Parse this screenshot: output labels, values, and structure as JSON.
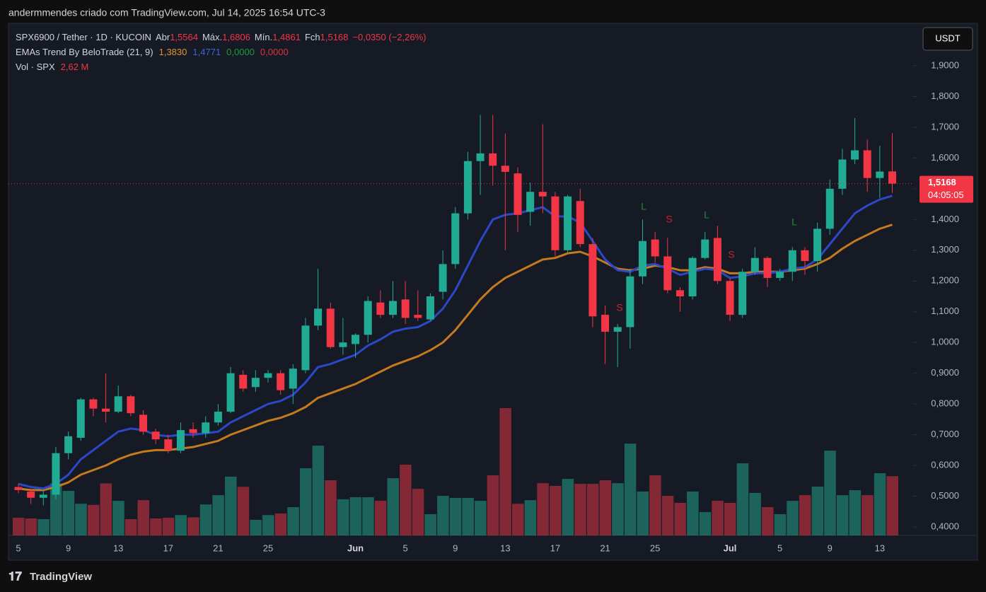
{
  "chart_data": {
    "type": "candlestick",
    "header": "andermmendes criado com TradingView.com, Jul 14, 2025 16:54 UTC-3",
    "legend": {
      "symbol": "SPX6900 / Tether · 1D · KUCOIN",
      "ohlc": [
        {
          "label": "Abr",
          "value": "1,5564"
        },
        {
          "label": "Máx.",
          "value": "1,6806"
        },
        {
          "label": "Mín.",
          "value": "1,4861"
        },
        {
          "label": "Fch",
          "value": "1,5168"
        }
      ],
      "change": "−0,0350 (−2,26%)",
      "indicator": "EMAs Trend By BeloTrade (21, 9)",
      "indicator_values": [
        {
          "value": "1,3830",
          "color": "#e0962e"
        },
        {
          "value": "1,4771",
          "color": "#3f63e0"
        },
        {
          "value": "0,0000",
          "color": "#1c9c3a"
        },
        {
          "value": "0,0000",
          "color": "#e0313a"
        }
      ],
      "volume": "Vol · SPX",
      "volume_value": "2,62 M"
    },
    "currency": "USDT",
    "price_label": "1,5168",
    "countdown": "04:05:05",
    "brand": "TradingView",
    "up_color": "#22ab94",
    "down_color": "#f23645",
    "categories": [
      "5",
      null,
      null,
      null,
      "9",
      null,
      null,
      null,
      "13",
      null,
      null,
      null,
      "17",
      null,
      null,
      null,
      "21",
      null,
      null,
      null,
      "25",
      null,
      null,
      null,
      null,
      null,
      null,
      "Jun",
      null,
      null,
      null,
      "5",
      null,
      null,
      null,
      "9",
      null,
      null,
      null,
      "13",
      null,
      null,
      null,
      "17",
      null,
      null,
      null,
      "21",
      null,
      null,
      null,
      "25",
      null,
      null,
      null,
      null,
      null,
      "Jul",
      null,
      null,
      null,
      "5",
      null,
      null,
      null,
      "9",
      null,
      null,
      null,
      "13",
      null
    ],
    "open": [
      0.53,
      0.515,
      0.495,
      0.505,
      0.64,
      0.69,
      0.815,
      0.785,
      0.775,
      0.825,
      0.765,
      0.71,
      0.685,
      0.648,
      0.718,
      0.705,
      0.74,
      0.775,
      0.895,
      0.855,
      0.885,
      0.9,
      0.85,
      0.91,
      1.055,
      1.11,
      0.985,
      0.995,
      1.025,
      1.13,
      1.09,
      1.14,
      1.09,
      1.075,
      1.165,
      1.255,
      1.42,
      1.59,
      1.615,
      1.575,
      1.55,
      1.425,
      1.49,
      1.475,
      1.3,
      1.46,
      1.32,
      1.09,
      1.035,
      1.05,
      1.215,
      1.335,
      1.28,
      1.17,
      1.15,
      1.275,
      1.34,
      1.2,
      1.09,
      1.23,
      1.275,
      1.21,
      1.23,
      1.3,
      1.265,
      1.37,
      1.5,
      1.595,
      1.625,
      1.535,
      1.5564
    ],
    "high": [
      0.54,
      0.525,
      0.52,
      0.66,
      0.71,
      0.82,
      0.82,
      0.9,
      0.86,
      0.83,
      0.78,
      0.72,
      0.7,
      0.74,
      0.74,
      0.76,
      0.8,
      0.92,
      0.91,
      0.91,
      0.91,
      0.91,
      0.93,
      1.08,
      1.24,
      1.13,
      1.08,
      1.03,
      1.15,
      1.17,
      1.2,
      1.2,
      1.17,
      1.16,
      1.3,
      1.44,
      1.62,
      1.74,
      1.74,
      1.68,
      1.57,
      1.52,
      1.71,
      1.49,
      1.48,
      1.5,
      1.34,
      1.12,
      1.06,
      1.24,
      1.4,
      1.36,
      1.34,
      1.18,
      1.28,
      1.36,
      1.38,
      1.21,
      1.24,
      1.31,
      1.28,
      1.24,
      1.31,
      1.31,
      1.39,
      1.53,
      1.63,
      1.73,
      1.66,
      1.64,
      1.6806
    ],
    "low": [
      0.51,
      0.475,
      0.47,
      0.49,
      0.62,
      0.68,
      0.76,
      0.74,
      0.77,
      0.76,
      0.7,
      0.67,
      0.64,
      0.64,
      0.69,
      0.69,
      0.73,
      0.77,
      0.84,
      0.84,
      0.87,
      0.83,
      0.8,
      0.9,
      1.04,
      0.98,
      0.96,
      0.95,
      1.0,
      1.08,
      1.08,
      1.06,
      1.07,
      1.07,
      1.14,
      1.24,
      1.4,
      1.48,
      1.51,
      1.3,
      1.36,
      1.38,
      1.42,
      1.28,
      1.29,
      1.31,
      1.05,
      0.93,
      0.92,
      0.98,
      1.19,
      1.26,
      1.16,
      1.1,
      1.14,
      1.27,
      1.19,
      1.07,
      1.08,
      1.22,
      1.18,
      1.2,
      1.2,
      1.22,
      1.23,
      1.35,
      1.48,
      1.58,
      1.49,
      1.47,
      1.4861
    ],
    "close": [
      0.52,
      0.495,
      0.505,
      0.64,
      0.695,
      0.815,
      0.785,
      0.775,
      0.825,
      0.77,
      0.71,
      0.685,
      0.65,
      0.715,
      0.705,
      0.74,
      0.775,
      0.9,
      0.85,
      0.885,
      0.9,
      0.845,
      0.915,
      1.055,
      1.11,
      0.985,
      1.0,
      1.025,
      1.135,
      1.09,
      1.135,
      1.08,
      1.08,
      1.15,
      1.255,
      1.42,
      1.59,
      1.615,
      1.575,
      1.555,
      1.415,
      1.49,
      1.475,
      1.3,
      1.475,
      1.32,
      1.085,
      1.035,
      1.05,
      1.215,
      1.33,
      1.28,
      1.17,
      1.15,
      1.275,
      1.335,
      1.2,
      1.09,
      1.23,
      1.275,
      1.21,
      1.23,
      1.3,
      1.265,
      1.37,
      1.5,
      1.595,
      1.625,
      1.535,
      1.556,
      1.5168
    ],
    "volume": [
      0.78,
      0.75,
      0.72,
      2.3,
      1.97,
      1.4,
      1.35,
      2.3,
      1.53,
      0.72,
      1.56,
      0.75,
      0.78,
      0.9,
      0.8,
      1.37,
      1.78,
      2.6,
      2.15,
      0.69,
      0.9,
      0.97,
      1.25,
      2.97,
      3.97,
      2.44,
      1.6,
      1.69,
      1.69,
      1.53,
      2.53,
      3.13,
      2.06,
      0.94,
      1.75,
      1.66,
      1.66,
      1.53,
      2.66,
      5.63,
      1.4,
      1.56,
      2.31,
      2.19,
      2.5,
      2.28,
      2.28,
      2.44,
      2.31,
      4.06,
      1.94,
      2.66,
      1.75,
      1.44,
      1.94,
      1.03,
      1.53,
      1.44,
      3.19,
      1.88,
      1.25,
      0.94,
      1.53,
      1.78,
      2.16,
      3.75,
      1.78,
      2.0,
      1.78,
      2.75,
      2.62
    ],
    "ema": [
      {
        "color": "#c47a1e",
        "values": [
          0.525,
          0.52,
          0.52,
          0.53,
          0.545,
          0.57,
          0.585,
          0.6,
          0.62,
          0.635,
          0.645,
          0.65,
          0.65,
          0.655,
          0.66,
          0.67,
          0.68,
          0.7,
          0.715,
          0.73,
          0.745,
          0.755,
          0.77,
          0.79,
          0.82,
          0.835,
          0.85,
          0.865,
          0.885,
          0.905,
          0.925,
          0.94,
          0.955,
          0.975,
          1.0,
          1.04,
          1.09,
          1.14,
          1.18,
          1.21,
          1.23,
          1.25,
          1.27,
          1.275,
          1.29,
          1.295,
          1.28,
          1.26,
          1.24,
          1.235,
          1.24,
          1.25,
          1.245,
          1.235,
          1.235,
          1.245,
          1.24,
          1.225,
          1.225,
          1.23,
          1.23,
          1.23,
          1.235,
          1.24,
          1.255,
          1.275,
          1.305,
          1.33,
          1.35,
          1.37,
          1.383
        ]
      },
      {
        "color": "#2b48c8",
        "values": [
          0.54,
          0.53,
          0.525,
          0.54,
          0.57,
          0.62,
          0.65,
          0.68,
          0.71,
          0.72,
          0.715,
          0.7,
          0.695,
          0.7,
          0.7,
          0.705,
          0.71,
          0.74,
          0.76,
          0.78,
          0.8,
          0.81,
          0.83,
          0.87,
          0.92,
          0.93,
          0.945,
          0.96,
          0.99,
          1.01,
          1.035,
          1.045,
          1.05,
          1.07,
          1.11,
          1.17,
          1.25,
          1.33,
          1.4,
          1.415,
          1.42,
          1.43,
          1.44,
          1.41,
          1.41,
          1.39,
          1.33,
          1.27,
          1.235,
          1.23,
          1.25,
          1.255,
          1.24,
          1.22,
          1.23,
          1.24,
          1.235,
          1.21,
          1.215,
          1.225,
          1.225,
          1.23,
          1.24,
          1.245,
          1.27,
          1.32,
          1.37,
          1.42,
          1.445,
          1.465,
          1.4771
        ]
      }
    ],
    "signals": [
      "S",
      "L",
      "S",
      "L",
      "S",
      "L"
    ],
    "ylim": [
      0.3725,
      2.0334
    ],
    "yticks": [
      {
        "value": 0.4,
        "label": "0,4000"
      },
      {
        "value": 0.5,
        "label": "0,5000"
      },
      {
        "value": 0.6,
        "label": "0,6000"
      },
      {
        "value": 0.7,
        "label": "0,7000"
      },
      {
        "value": 0.8,
        "label": "0,8000"
      },
      {
        "value": 0.9,
        "label": "0,9000"
      },
      {
        "value": 1.0,
        "label": "1,0000"
      },
      {
        "value": 1.1,
        "label": "1,1000"
      },
      {
        "value": 1.2,
        "label": "1,2000"
      },
      {
        "value": 1.3,
        "label": "1,3000"
      },
      {
        "value": 1.4,
        "label": "1,4000"
      },
      {
        "value": 1.5,
        "label": "1,5000"
      },
      {
        "value": 1.6,
        "label": "1,6000"
      },
      {
        "value": 1.7,
        "label": "1,7000"
      },
      {
        "value": 1.8,
        "label": "1,8000"
      },
      {
        "value": 1.9,
        "label": "1,9000"
      }
    ]
  }
}
